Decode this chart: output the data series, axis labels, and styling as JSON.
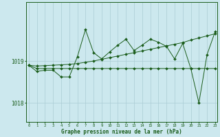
{
  "xlabel": "Graphe pression niveau de la mer (hPa)",
  "bg_color": "#cce8ee",
  "line_color": "#1a5c1a",
  "grid_color": "#aaccd4",
  "x_ticks": [
    0,
    1,
    2,
    3,
    4,
    5,
    6,
    7,
    8,
    9,
    10,
    11,
    12,
    13,
    14,
    15,
    16,
    17,
    18,
    19,
    20,
    21,
    22,
    23
  ],
  "ylim": [
    1017.55,
    1020.4
  ],
  "yticks": [
    1018,
    1019
  ],
  "series": [
    [
      1018.9,
      1018.82,
      1018.82,
      1018.82,
      1018.82,
      1018.82,
      1018.82,
      1018.82,
      1018.82,
      1018.82,
      1018.82,
      1018.82,
      1018.82,
      1018.82,
      1018.82,
      1018.82,
      1018.82,
      1018.82,
      1018.82,
      1018.82,
      1018.82,
      1018.82,
      1018.82,
      1018.82
    ],
    [
      1018.9,
      1018.88,
      1018.89,
      1018.9,
      1018.91,
      1018.92,
      1018.94,
      1018.97,
      1019.0,
      1019.04,
      1019.08,
      1019.12,
      1019.16,
      1019.2,
      1019.24,
      1019.28,
      1019.32,
      1019.36,
      1019.4,
      1019.44,
      1019.5,
      1019.55,
      1019.6,
      1019.65
    ],
    [
      1018.9,
      1018.75,
      1018.78,
      1018.78,
      1018.62,
      1018.62,
      1019.1,
      1019.75,
      1019.2,
      1019.05,
      1019.22,
      1019.38,
      1019.52,
      1019.25,
      1019.38,
      1019.52,
      1019.45,
      1019.35,
      1019.05,
      1019.42,
      1018.82,
      1018.0,
      1019.15,
      1019.7
    ]
  ],
  "xlim": [
    -0.3,
    23.3
  ],
  "figsize": [
    3.2,
    2.0
  ],
  "dpi": 100
}
